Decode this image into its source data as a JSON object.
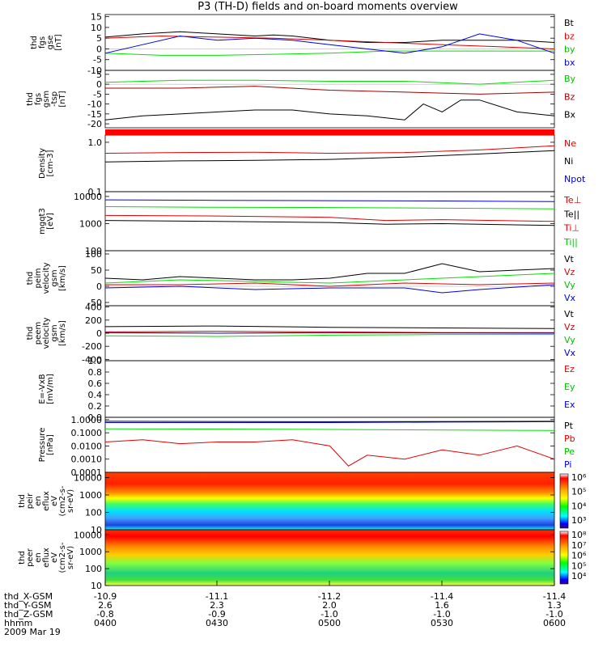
{
  "title": "P3 (TH-D) fields and on-board moments overview",
  "footer": {
    "row_labels": [
      "thd_X-GSM",
      "thd_Y-GSM",
      "thd_Z-GSM",
      "hhmm",
      "2009 Mar 19"
    ],
    "columns": [
      [
        "-10.9",
        "2.6",
        "-0.8",
        "0400"
      ],
      [
        "-11.1",
        "2.3",
        "-0.9",
        "0430"
      ],
      [
        "-11.2",
        "2.0",
        "-1.0",
        "0500"
      ],
      [
        "-11.4",
        "1.6",
        "-1.0",
        "0530"
      ],
      [
        "-11.4",
        "1.3",
        "-1.0",
        "0600"
      ]
    ]
  },
  "colors": {
    "black": "#000000",
    "red": "#e00000",
    "green": "#00e000",
    "blue": "#0000e0",
    "darkred": "#a00000",
    "lime": "#00c000"
  },
  "chart_data": [
    {
      "id": "fgs_gse",
      "type": "line",
      "ylabel": [
        "thd",
        "fgs",
        "gse",
        "[nT]"
      ],
      "ylim": [
        -10,
        16
      ],
      "yticks": [
        15,
        10,
        5,
        0,
        -5,
        -10
      ],
      "legend": [
        {
          "text": "Bt",
          "color": "#000000"
        },
        {
          "text": "bz",
          "color": "#e00000"
        },
        {
          "text": "by",
          "color": "#00c000"
        },
        {
          "text": "bx",
          "color": "#0000e0"
        }
      ],
      "series": [
        {
          "name": "Bt",
          "color": "#000000",
          "x": [
            0,
            10,
            20,
            30,
            40,
            45,
            50,
            60,
            70,
            80,
            90,
            100,
            110,
            120
          ],
          "y": [
            5.5,
            7,
            8,
            7,
            6,
            6.5,
            6,
            4,
            3,
            3,
            4,
            4,
            4,
            3
          ]
        },
        {
          "name": "bz",
          "color": "#e00000",
          "x": [
            0,
            15,
            30,
            45,
            60,
            75,
            90,
            105,
            120
          ],
          "y": [
            5,
            6,
            5.5,
            5,
            4,
            3,
            2,
            1,
            0
          ]
        },
        {
          "name": "by",
          "color": "#00e000",
          "x": [
            0,
            15,
            30,
            45,
            60,
            75,
            90,
            105,
            120
          ],
          "y": [
            -2,
            -3,
            -3,
            -2.5,
            -2,
            -1,
            -1,
            -1,
            -1
          ]
        },
        {
          "name": "bx",
          "color": "#0000e0",
          "x": [
            0,
            10,
            20,
            30,
            40,
            50,
            60,
            70,
            80,
            90,
            100,
            110,
            120
          ],
          "y": [
            -2,
            2,
            6,
            4,
            5,
            4,
            2,
            0,
            -2,
            1,
            7,
            4,
            -2
          ]
        }
      ]
    },
    {
      "id": "fgs_gsm",
      "type": "line",
      "ylabel": [
        "thd",
        "fgs",
        "gsm",
        "-tsp",
        "[nT]"
      ],
      "ylim": [
        -22,
        7
      ],
      "yticks": [
        5,
        0,
        -5,
        -10,
        -15,
        -20
      ],
      "legend": [
        {
          "text": "By",
          "color": "#00c000"
        },
        {
          "text": "Bz",
          "color": "#a00000"
        },
        {
          "text": "Bx",
          "color": "#000000"
        }
      ],
      "series": [
        {
          "name": "By",
          "color": "#00e000",
          "x": [
            0,
            20,
            40,
            60,
            80,
            100,
            120
          ],
          "y": [
            1,
            2,
            2,
            1.5,
            1.5,
            0,
            2
          ]
        },
        {
          "name": "Bz",
          "color": "#a00000",
          "x": [
            0,
            20,
            40,
            60,
            80,
            100,
            120
          ],
          "y": [
            -2,
            -2,
            -1,
            -3,
            -4,
            -5,
            -4
          ]
        },
        {
          "name": "Bx",
          "color": "#000000",
          "x": [
            0,
            10,
            20,
            30,
            40,
            50,
            60,
            70,
            80,
            85,
            90,
            95,
            100,
            110,
            120
          ],
          "y": [
            -18,
            -16,
            -15,
            -14,
            -13,
            -13,
            -15,
            -16,
            -18,
            -10,
            -14,
            -8,
            -8,
            -14,
            -16
          ]
        }
      ]
    },
    {
      "id": "density",
      "type": "line",
      "log": true,
      "ylabel": [
        "Density",
        "[cm-3]"
      ],
      "ylim": [
        0.1,
        1.4
      ],
      "yticks": [
        "1.0",
        "0.1"
      ],
      "ytick_values": [
        1.0,
        0.1
      ],
      "legend": [
        {
          "text": "Ne",
          "color": "#e00000"
        },
        {
          "text": "Ni",
          "color": "#000000"
        },
        {
          "text": "Npot",
          "color": "#0000e0"
        }
      ],
      "series": [
        {
          "name": "Ne",
          "color": "#e00000",
          "x": [
            0,
            20,
            40,
            60,
            80,
            100,
            120
          ],
          "y": [
            0.6,
            0.62,
            0.63,
            0.6,
            0.62,
            0.7,
            0.85
          ]
        },
        {
          "name": "Ni",
          "color": "#000000",
          "x": [
            0,
            20,
            40,
            60,
            80,
            100,
            120
          ],
          "y": [
            0.4,
            0.42,
            0.43,
            0.45,
            0.5,
            0.58,
            0.68
          ]
        }
      ]
    },
    {
      "id": "moments",
      "type": "line",
      "log": true,
      "ylabel": [
        "mgqt3",
        "[eV]"
      ],
      "ylim": [
        100,
        15000
      ],
      "yticks": [
        "10000",
        "1000",
        "100"
      ],
      "ytick_values": [
        10000,
        1000,
        100
      ],
      "legend": [
        {
          "text": "Te⊥",
          "color": "#e00000"
        },
        {
          "text": "Te||",
          "color": "#000000"
        },
        {
          "text": "Ti⊥",
          "color": "#e00000"
        },
        {
          "text": "Ti||",
          "color": "#00c000"
        }
      ],
      "series": [
        {
          "name": "Npot",
          "color": "#0000e0",
          "x": [
            0,
            30,
            60,
            90,
            120
          ],
          "y": [
            7500,
            7200,
            7000,
            6800,
            6500
          ]
        },
        {
          "name": "Ti||",
          "color": "#00e000",
          "x": [
            0,
            30,
            60,
            90,
            120
          ],
          "y": [
            4200,
            4000,
            3900,
            3700,
            3500
          ]
        },
        {
          "name": "Ti⊥",
          "color": "#e00000",
          "x": [
            0,
            30,
            60,
            75,
            90,
            120
          ],
          "y": [
            2000,
            1900,
            1700,
            1300,
            1400,
            1200
          ]
        },
        {
          "name": "Te||",
          "color": "#000000",
          "x": [
            0,
            30,
            60,
            75,
            90,
            120
          ],
          "y": [
            1300,
            1200,
            1100,
            950,
            1000,
            850
          ]
        }
      ]
    },
    {
      "id": "peim_velocity",
      "type": "line",
      "ylabel": [
        "thd",
        "peim",
        "velocity",
        "gsm",
        "[km/s]"
      ],
      "ylim": [
        -60,
        110
      ],
      "yticks": [
        100,
        50,
        0,
        -50
      ],
      "legend": [
        {
          "text": "Vt",
          "color": "#000000"
        },
        {
          "text": "Vz",
          "color": "#e00000"
        },
        {
          "text": "Vy",
          "color": "#00c000"
        },
        {
          "text": "Vx",
          "color": "#0000e0"
        }
      ],
      "series": [
        {
          "name": "Vt",
          "color": "#000000",
          "x": [
            0,
            10,
            20,
            30,
            40,
            50,
            60,
            70,
            80,
            90,
            100,
            110,
            120
          ],
          "y": [
            25,
            20,
            30,
            25,
            20,
            20,
            25,
            40,
            40,
            70,
            45,
            50,
            55
          ]
        },
        {
          "name": "Vz",
          "color": "#e00000",
          "x": [
            0,
            20,
            40,
            60,
            80,
            100,
            120
          ],
          "y": [
            5,
            5,
            10,
            0,
            10,
            5,
            10
          ]
        },
        {
          "name": "Vy",
          "color": "#00e000",
          "x": [
            0,
            20,
            40,
            60,
            80,
            100,
            120
          ],
          "y": [
            10,
            20,
            15,
            10,
            20,
            30,
            40
          ]
        },
        {
          "name": "Vx",
          "color": "#0000e0",
          "x": [
            0,
            20,
            40,
            60,
            80,
            90,
            100,
            120
          ],
          "y": [
            -5,
            0,
            -10,
            -5,
            -5,
            -20,
            -10,
            5
          ]
        }
      ]
    },
    {
      "id": "peem_velocity",
      "type": "line",
      "ylabel": [
        "thd",
        "peem",
        "velocity",
        "gsm",
        "[km/s]"
      ],
      "ylim": [
        -420,
        420
      ],
      "yticks": [
        400,
        200,
        0,
        -200,
        -400
      ],
      "legend": [
        {
          "text": "Vt",
          "color": "#000000"
        },
        {
          "text": "Vz",
          "color": "#e00000"
        },
        {
          "text": "Vy",
          "color": "#00c000"
        },
        {
          "text": "Vx",
          "color": "#0000e0"
        }
      ],
      "series": [
        {
          "name": "Vt",
          "color": "#000000",
          "x": [
            0,
            30,
            60,
            90,
            120
          ],
          "y": [
            100,
            110,
            90,
            80,
            70
          ]
        },
        {
          "name": "Vz",
          "color": "#e00000",
          "x": [
            0,
            30,
            60,
            90,
            120
          ],
          "y": [
            20,
            30,
            20,
            10,
            10
          ]
        },
        {
          "name": "Vy",
          "color": "#00e000",
          "x": [
            0,
            30,
            60,
            90,
            120
          ],
          "y": [
            -40,
            -50,
            -30,
            -20,
            -20
          ]
        },
        {
          "name": "Vx",
          "color": "#0000e0",
          "x": [
            0,
            30,
            60,
            90,
            120
          ],
          "y": [
            10,
            0,
            10,
            5,
            0
          ]
        }
      ]
    },
    {
      "id": "efield",
      "type": "line",
      "ylabel": [
        "E=-VxB",
        "[mV/m]"
      ],
      "ylim": [
        0,
        1
      ],
      "yticks": [
        "1.0",
        "0.8",
        "0.6",
        "0.4",
        "0.2",
        "0.0"
      ],
      "ytick_values": [
        1.0,
        0.8,
        0.6,
        0.4,
        0.2,
        0.0
      ],
      "legend": [
        {
          "text": "Ez",
          "color": "#e00000"
        },
        {
          "text": "Ey",
          "color": "#00c000"
        },
        {
          "text": "Ex",
          "color": "#0000e0"
        }
      ],
      "series": []
    },
    {
      "id": "pressure",
      "type": "line",
      "log": true,
      "ylabel": [
        "Pressure",
        "[nPa]"
      ],
      "ylim": [
        0.0001,
        1.5
      ],
      "yticks": [
        "1.0000",
        "0.1000",
        "0.0100",
        "0.0010",
        "0.0001"
      ],
      "ytick_values": [
        1,
        0.1,
        0.01,
        0.001,
        0.0001
      ],
      "legend": [
        {
          "text": "Pt",
          "color": "#000000"
        },
        {
          "text": "Pb",
          "color": "#e00000"
        },
        {
          "text": "Pe",
          "color": "#00c000"
        },
        {
          "text": "Pi",
          "color": "#0000e0"
        }
      ],
      "series": [
        {
          "name": "Pt",
          "color": "#000000",
          "x": [
            0,
            60,
            120
          ],
          "y": [
            0.75,
            0.7,
            0.75
          ]
        },
        {
          "name": "Pi",
          "color": "#0000e0",
          "x": [
            0,
            60,
            90,
            120
          ],
          "y": [
            0.6,
            0.6,
            0.65,
            0.7
          ]
        },
        {
          "name": "Pe",
          "color": "#00e000",
          "x": [
            0,
            60,
            120
          ],
          "y": [
            0.2,
            0.18,
            0.15
          ]
        },
        {
          "name": "Pb",
          "color": "#e00000",
          "x": [
            0,
            10,
            20,
            30,
            40,
            50,
            60,
            65,
            70,
            80,
            90,
            100,
            110,
            120
          ],
          "y": [
            0.02,
            0.03,
            0.015,
            0.02,
            0.02,
            0.03,
            0.01,
            0.0003,
            0.002,
            0.001,
            0.005,
            0.002,
            0.01,
            0.001
          ]
        }
      ]
    },
    {
      "id": "peir_eflux",
      "type": "heatmap",
      "log": true,
      "ylabel": [
        "thd",
        "peir",
        "en",
        "eflux",
        "eV",
        "(cm2-s-",
        "sr-eV)"
      ],
      "ylim": [
        10,
        20000
      ],
      "yticks": [
        "10000",
        "1000",
        "100",
        "10"
      ],
      "ytick_values": [
        10000,
        1000,
        100,
        10
      ],
      "colorbar_ticks": [
        "10⁶",
        "10⁵",
        "10⁴",
        "10³"
      ]
    },
    {
      "id": "peer_eflux",
      "type": "heatmap",
      "log": true,
      "ylabel": [
        "thd",
        "peer",
        "en",
        "eflux",
        "eV",
        "(cm2-s-",
        "sr-eV)"
      ],
      "ylim": [
        10,
        20000
      ],
      "yticks": [
        "10000",
        "1000",
        "100",
        "10"
      ],
      "ytick_values": [
        10000,
        1000,
        100,
        10
      ],
      "colorbar_ticks": [
        "10⁸",
        "10⁷",
        "10⁶",
        "10⁵",
        "10⁴"
      ]
    }
  ]
}
